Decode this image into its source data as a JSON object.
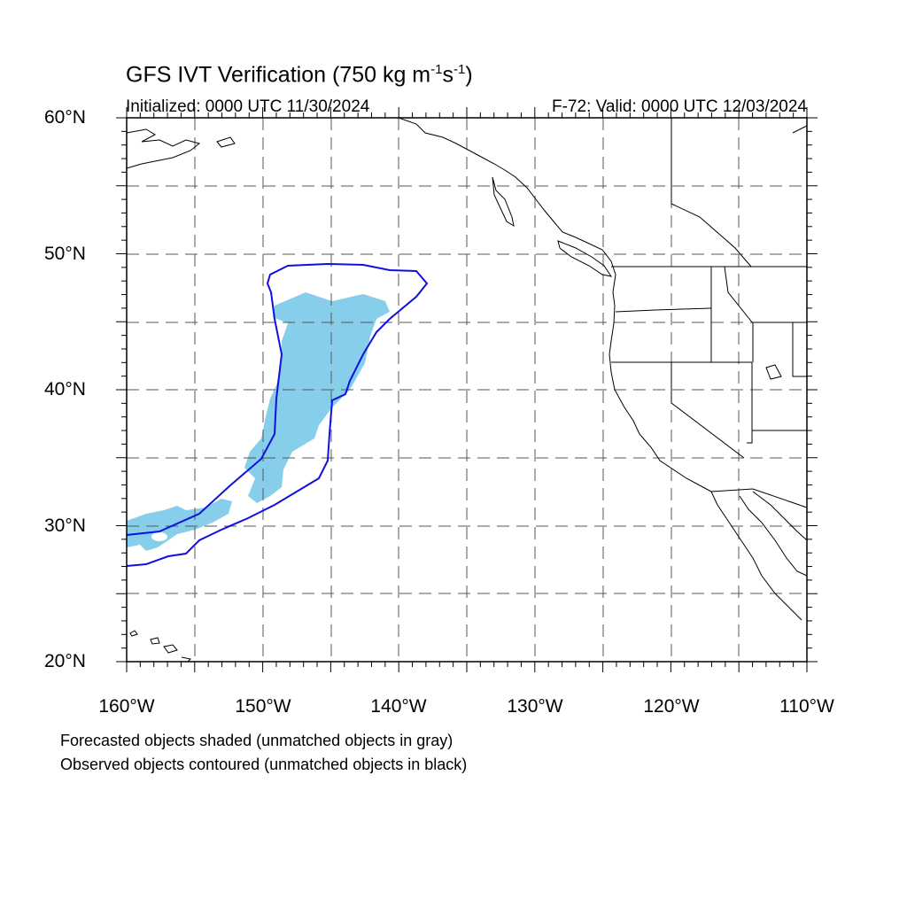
{
  "title": {
    "main": "GFS IVT Verification (750 kg m",
    "sup1": "-1",
    "mid": "s",
    "sup2": "-1",
    "end": ")"
  },
  "initialized": "Initialized: 0000 UTC 11/30/2024",
  "valid": "F-72: Valid: 0000 UTC 12/03/2024",
  "lat_labels": [
    "60°N",
    "50°N",
    "40°N",
    "30°N",
    "20°N"
  ],
  "lon_labels": [
    "160°W",
    "150°W",
    "140°W",
    "130°W",
    "120°W",
    "110°W"
  ],
  "notes": [
    "Forecasted objects shaded (unmatched objects in gray)",
    "Observed objects contoured (unmatched objects in black)"
  ],
  "map_extent": {
    "lon": [
      -160,
      -110
    ],
    "lat": [
      20,
      60
    ]
  },
  "colors": {
    "forecast_fill": "#87ceeb",
    "observed_contour": "#1010e0",
    "coastline": "#000000",
    "grid": "#555555"
  }
}
